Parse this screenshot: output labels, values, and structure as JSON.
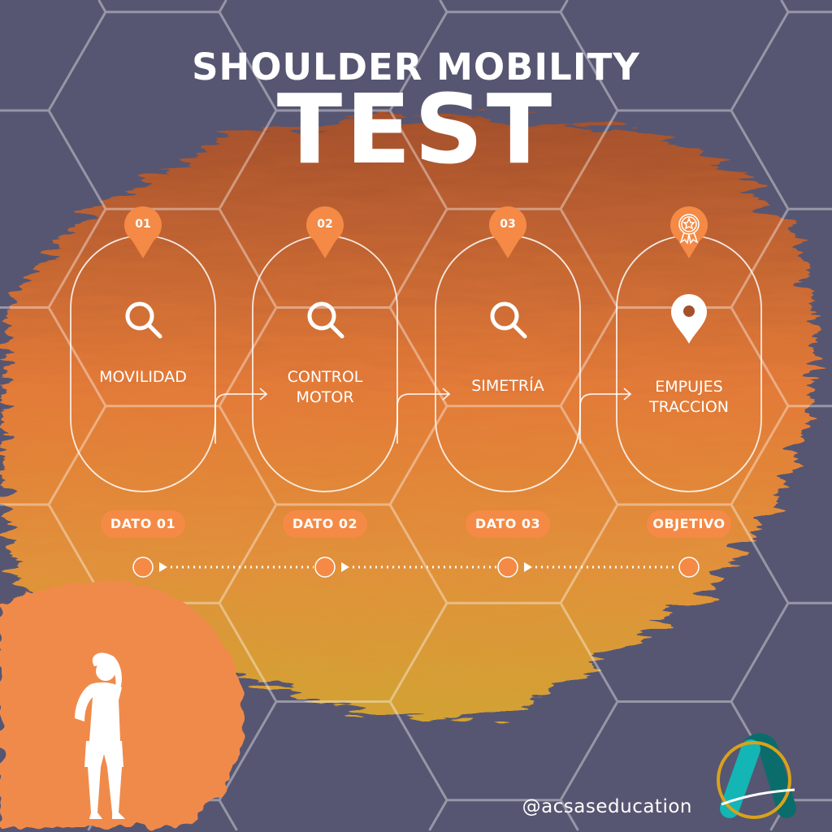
{
  "title": {
    "line1": "SHOULDER MOBILITY",
    "line2": "TEST"
  },
  "steps": [
    {
      "number": "01",
      "icon": "search-icon",
      "label_lines": [
        "MOVILIDAD"
      ],
      "badge": "DATO 01"
    },
    {
      "number": "02",
      "icon": "search-icon",
      "label_lines": [
        "CONTROL",
        "MOTOR"
      ],
      "badge": "DATO 02"
    },
    {
      "number": "03",
      "icon": "search-icon",
      "label_lines": [
        "SIMETRÍA"
      ],
      "badge": "DATO 03"
    },
    {
      "number": "",
      "icon": "award-ribbon-icon",
      "content_icon": "location-pin-icon",
      "label_lines": [
        "EMPUJES",
        "TRACCION"
      ],
      "badge": "OBJETIVO"
    }
  ],
  "footer": {
    "handle": "@acsaseducation"
  },
  "colors": {
    "background": "#565672",
    "accent": "#f48a45",
    "blob_top": "#a4502c",
    "blob_bottom": "#d8a232",
    "logo_teal": "#0fb3b3",
    "logo_gold": "#d9a21b"
  }
}
